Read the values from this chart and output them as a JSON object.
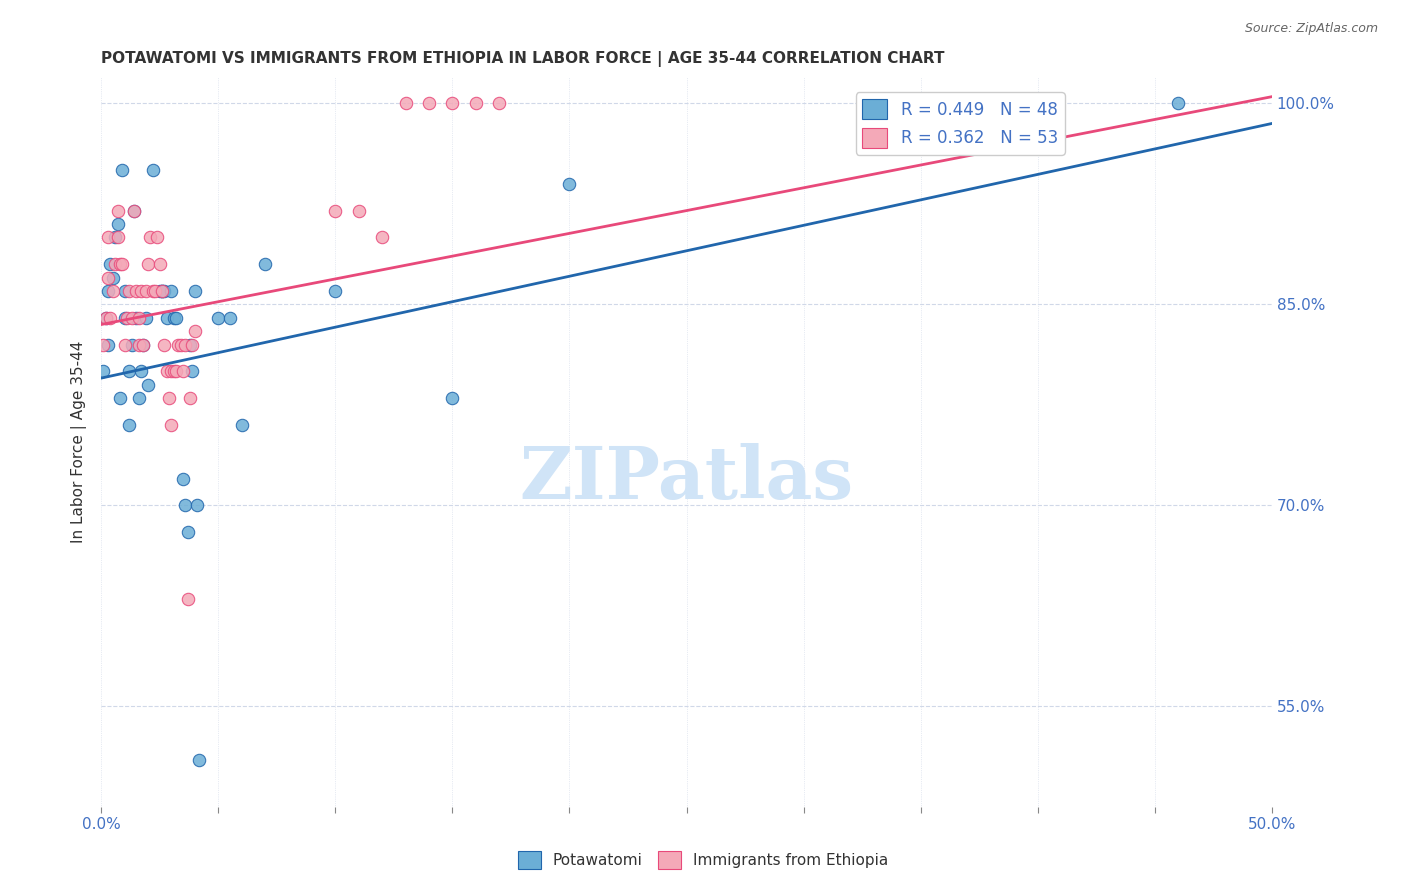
{
  "title": "POTAWATOMI VS IMMIGRANTS FROM ETHIOPIA IN LABOR FORCE | AGE 35-44 CORRELATION CHART",
  "source": "Source: ZipAtlas.com",
  "xlabel": "",
  "ylabel": "In Labor Force | Age 35-44",
  "xlim": [
    0.0,
    0.5
  ],
  "ylim": [
    0.475,
    1.02
  ],
  "xticks": [
    0.0,
    0.05,
    0.1,
    0.15,
    0.2,
    0.25,
    0.3,
    0.35,
    0.4,
    0.45,
    0.5
  ],
  "xticklabels": [
    "0.0%",
    "",
    "",
    "",
    "",
    "",
    "",
    "",
    "",
    "",
    "50.0%"
  ],
  "yticks_right": [
    0.55,
    0.7,
    0.85,
    1.0
  ],
  "ytick_labels_right": [
    "55.0%",
    "70.0%",
    "85.0%",
    "100.0%"
  ],
  "legend_blue_r": "R = 0.449",
  "legend_blue_n": "N = 48",
  "legend_pink_r": "R = 0.362",
  "legend_pink_n": "N = 53",
  "blue_color": "#6baed6",
  "pink_color": "#f4a9b8",
  "blue_line_color": "#2166ac",
  "pink_line_color": "#e8497a",
  "watermark": "ZIPatlas",
  "watermark_color": "#d0e4f7",
  "blue_scatter_x": [
    0.001,
    0.002,
    0.003,
    0.003,
    0.004,
    0.005,
    0.006,
    0.007,
    0.008,
    0.009,
    0.01,
    0.01,
    0.012,
    0.012,
    0.013,
    0.014,
    0.015,
    0.016,
    0.017,
    0.018,
    0.019,
    0.02,
    0.022,
    0.025,
    0.026,
    0.026,
    0.027,
    0.028,
    0.03,
    0.031,
    0.032,
    0.035,
    0.036,
    0.037,
    0.038,
    0.039,
    0.04,
    0.041,
    0.042,
    0.05,
    0.055,
    0.06,
    0.07,
    0.1,
    0.15,
    0.2,
    0.38,
    0.46
  ],
  "blue_scatter_y": [
    0.8,
    0.84,
    0.86,
    0.82,
    0.88,
    0.87,
    0.9,
    0.91,
    0.78,
    0.95,
    0.84,
    0.86,
    0.76,
    0.8,
    0.82,
    0.92,
    0.84,
    0.78,
    0.8,
    0.82,
    0.84,
    0.79,
    0.95,
    0.86,
    0.86,
    0.86,
    0.86,
    0.84,
    0.86,
    0.84,
    0.84,
    0.72,
    0.7,
    0.68,
    0.82,
    0.8,
    0.86,
    0.7,
    0.51,
    0.84,
    0.84,
    0.76,
    0.88,
    0.86,
    0.78,
    0.94,
    1.0,
    1.0
  ],
  "pink_scatter_x": [
    0.001,
    0.002,
    0.003,
    0.003,
    0.004,
    0.005,
    0.006,
    0.007,
    0.007,
    0.008,
    0.009,
    0.01,
    0.011,
    0.012,
    0.013,
    0.014,
    0.015,
    0.016,
    0.016,
    0.017,
    0.018,
    0.019,
    0.02,
    0.021,
    0.022,
    0.023,
    0.024,
    0.025,
    0.026,
    0.027,
    0.028,
    0.029,
    0.03,
    0.03,
    0.031,
    0.032,
    0.033,
    0.034,
    0.035,
    0.036,
    0.037,
    0.038,
    0.039,
    0.04,
    0.1,
    0.11,
    0.12,
    0.13,
    0.14,
    0.15,
    0.16,
    0.17,
    0.35
  ],
  "pink_scatter_y": [
    0.82,
    0.84,
    0.87,
    0.9,
    0.84,
    0.86,
    0.88,
    0.92,
    0.9,
    0.88,
    0.88,
    0.82,
    0.84,
    0.86,
    0.84,
    0.92,
    0.86,
    0.84,
    0.82,
    0.86,
    0.82,
    0.86,
    0.88,
    0.9,
    0.86,
    0.86,
    0.9,
    0.88,
    0.86,
    0.82,
    0.8,
    0.78,
    0.8,
    0.76,
    0.8,
    0.8,
    0.82,
    0.82,
    0.8,
    0.82,
    0.63,
    0.78,
    0.82,
    0.83,
    0.92,
    0.92,
    0.9,
    1.0,
    1.0,
    1.0,
    1.0,
    1.0,
    1.0
  ],
  "blue_trend_x": [
    0.0,
    0.5
  ],
  "blue_trend_y": [
    0.795,
    0.985
  ],
  "pink_trend_x": [
    0.0,
    0.5
  ],
  "pink_trend_y": [
    0.835,
    1.005
  ],
  "grid_color": "#d0d8e8",
  "title_fontsize": 11,
  "axis_color": "#4472c4",
  "background_color": "#ffffff"
}
